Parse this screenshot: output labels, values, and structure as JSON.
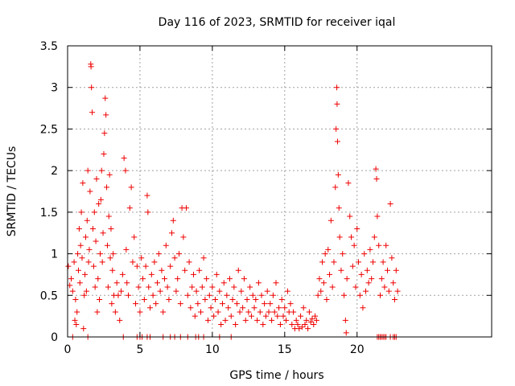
{
  "chart_data": {
    "type": "scatter",
    "title": "Day 116 of 2023, SRMTID for receiver iqal",
    "xlabel": "GPS time / hours",
    "ylabel": "SRMTID / TECUs",
    "xlim": [
      0,
      29.3
    ],
    "ylim": [
      0,
      3.5
    ],
    "x_ticks": [
      0,
      5,
      10,
      15,
      20
    ],
    "y_ticks": [
      0,
      0.5,
      1,
      1.5,
      2,
      2.5,
      3,
      3.5
    ],
    "x_tick_labels": [
      "0",
      "5",
      "10",
      "15",
      "20"
    ],
    "y_tick_labels": [
      "0",
      "0.5",
      "1",
      "1.5",
      "2",
      "2.5",
      "3",
      "3.5"
    ],
    "grid": true,
    "legend": "none",
    "marker": "+",
    "marker_color": "#ee0000",
    "series": [
      {
        "name": "SRMTID",
        "points": [
          [
            0.05,
            0.85
          ],
          [
            0.15,
            0.62
          ],
          [
            0.25,
            0.7
          ],
          [
            0.35,
            0.55
          ],
          [
            0.45,
            0.9
          ],
          [
            0.5,
            0.2
          ],
          [
            0.55,
            0.45
          ],
          [
            0.6,
            0.15
          ],
          [
            0.65,
            0.3
          ],
          [
            0.7,
            1.0
          ],
          [
            0.75,
            0.8
          ],
          [
            0.8,
            1.3
          ],
          [
            0.85,
            0.65
          ],
          [
            0.9,
            1.1
          ],
          [
            0.95,
            1.5
          ],
          [
            1.0,
            0.95
          ],
          [
            1.05,
            1.85
          ],
          [
            1.1,
            0.1
          ],
          [
            1.15,
            0.5
          ],
          [
            1.2,
            0.75
          ],
          [
            1.25,
            1.2
          ],
          [
            1.3,
            0.55
          ],
          [
            1.35,
            1.4
          ],
          [
            1.4,
            2.0
          ],
          [
            1.45,
            0.9
          ],
          [
            1.5,
            1.05
          ],
          [
            1.55,
            1.75
          ],
          [
            1.6,
            3.28
          ],
          [
            1.62,
            3.25
          ],
          [
            1.65,
            3.0
          ],
          [
            1.7,
            2.7
          ],
          [
            1.75,
            1.3
          ],
          [
            1.8,
            0.85
          ],
          [
            1.85,
            1.5
          ],
          [
            1.9,
            0.6
          ],
          [
            1.95,
            1.15
          ],
          [
            2.0,
            1.9
          ],
          [
            2.05,
            0.3
          ],
          [
            2.1,
            0.7
          ],
          [
            2.15,
            1.6
          ],
          [
            2.2,
            0.45
          ],
          [
            2.25,
            1.0
          ],
          [
            2.3,
            1.65
          ],
          [
            2.35,
            2.0
          ],
          [
            2.4,
            0.9
          ],
          [
            2.45,
            1.25
          ],
          [
            2.5,
            2.2
          ],
          [
            2.55,
            2.45
          ],
          [
            2.6,
            2.87
          ],
          [
            2.65,
            2.67
          ],
          [
            2.7,
            1.8
          ],
          [
            2.75,
            1.1
          ],
          [
            2.8,
            0.6
          ],
          [
            2.85,
            1.45
          ],
          [
            2.9,
            1.95
          ],
          [
            2.95,
            0.95
          ],
          [
            3.0,
            1.3
          ],
          [
            3.05,
            0.4
          ],
          [
            3.1,
            0.8
          ],
          [
            3.15,
            1.0
          ],
          [
            3.2,
            0.5
          ],
          [
            3.3,
            0.3
          ],
          [
            3.4,
            0.65
          ],
          [
            3.5,
            0.5
          ],
          [
            3.6,
            0.2
          ],
          [
            3.7,
            0.55
          ],
          [
            3.8,
            0.75
          ],
          [
            3.9,
            2.15
          ],
          [
            4.0,
            2.0
          ],
          [
            4.05,
            1.05
          ],
          [
            4.1,
            0.65
          ],
          [
            4.2,
            0.5
          ],
          [
            4.3,
            1.55
          ],
          [
            4.4,
            1.8
          ],
          [
            4.5,
            0.9
          ],
          [
            4.6,
            1.2
          ],
          [
            4.7,
            0.4
          ],
          [
            4.8,
            0.85
          ],
          [
            4.9,
            0.6
          ],
          [
            5.0,
            0.3
          ],
          [
            5.1,
            0.95
          ],
          [
            5.2,
            0.7
          ],
          [
            5.3,
            0.45
          ],
          [
            5.4,
            0.85
          ],
          [
            5.5,
            1.7
          ],
          [
            5.55,
            1.5
          ],
          [
            5.6,
            0.6
          ],
          [
            5.7,
            0.35
          ],
          [
            5.8,
            0.75
          ],
          [
            5.9,
            0.5
          ],
          [
            6.0,
            0.9
          ],
          [
            6.1,
            0.4
          ],
          [
            6.2,
            0.65
          ],
          [
            6.3,
            1.0
          ],
          [
            6.4,
            0.55
          ],
          [
            6.5,
            0.8
          ],
          [
            6.6,
            0.3
          ],
          [
            6.7,
            0.7
          ],
          [
            6.8,
            1.1
          ],
          [
            6.9,
            0.6
          ],
          [
            7.0,
            0.45
          ],
          [
            7.1,
            0.85
          ],
          [
            7.2,
            1.25
          ],
          [
            7.3,
            1.4
          ],
          [
            7.4,
            0.95
          ],
          [
            7.5,
            0.55
          ],
          [
            7.6,
            0.7
          ],
          [
            7.7,
            1.0
          ],
          [
            7.8,
            0.4
          ],
          [
            7.9,
            1.55
          ],
          [
            8.0,
            1.2
          ],
          [
            8.1,
            0.8
          ],
          [
            8.2,
            1.55
          ],
          [
            8.3,
            0.5
          ],
          [
            8.4,
            0.9
          ],
          [
            8.5,
            0.35
          ],
          [
            8.6,
            0.6
          ],
          [
            8.7,
            0.75
          ],
          [
            8.8,
            0.25
          ],
          [
            8.9,
            0.55
          ],
          [
            9.0,
            0.4
          ],
          [
            9.1,
            0.8
          ],
          [
            9.2,
            0.3
          ],
          [
            9.3,
            0.6
          ],
          [
            9.4,
            0.95
          ],
          [
            9.5,
            0.45
          ],
          [
            9.6,
            0.7
          ],
          [
            9.7,
            0.2
          ],
          [
            9.8,
            0.5
          ],
          [
            9.9,
            0.35
          ],
          [
            10.0,
            0.6
          ],
          [
            10.1,
            0.25
          ],
          [
            10.2,
            0.45
          ],
          [
            10.3,
            0.75
          ],
          [
            10.4,
            0.3
          ],
          [
            10.5,
            0.55
          ],
          [
            10.6,
            0.15
          ],
          [
            10.7,
            0.4
          ],
          [
            10.8,
            0.65
          ],
          [
            10.9,
            0.2
          ],
          [
            11.0,
            0.5
          ],
          [
            11.1,
            0.35
          ],
          [
            11.2,
            0.7
          ],
          [
            11.3,
            0.25
          ],
          [
            11.4,
            0.45
          ],
          [
            11.5,
            0.6
          ],
          [
            11.6,
            0.15
          ],
          [
            11.7,
            0.4
          ],
          [
            11.8,
            0.8
          ],
          [
            11.9,
            0.3
          ],
          [
            12.0,
            0.55
          ],
          [
            12.1,
            0.35
          ],
          [
            12.2,
            0.7
          ],
          [
            12.3,
            0.2
          ],
          [
            12.4,
            0.45
          ],
          [
            12.5,
            0.3
          ],
          [
            12.6,
            0.6
          ],
          [
            12.7,
            0.25
          ],
          [
            12.8,
            0.5
          ],
          [
            12.9,
            0.35
          ],
          [
            13.0,
            0.45
          ],
          [
            13.1,
            0.2
          ],
          [
            13.2,
            0.65
          ],
          [
            13.3,
            0.3
          ],
          [
            13.4,
            0.5
          ],
          [
            13.5,
            0.15
          ],
          [
            13.6,
            0.4
          ],
          [
            13.7,
            0.25
          ],
          [
            13.8,
            0.55
          ],
          [
            13.9,
            0.3
          ],
          [
            14.0,
            0.4
          ],
          [
            14.1,
            0.2
          ],
          [
            14.2,
            0.5
          ],
          [
            14.3,
            0.3
          ],
          [
            14.4,
            0.65
          ],
          [
            14.5,
            0.25
          ],
          [
            14.6,
            0.35
          ],
          [
            14.7,
            0.15
          ],
          [
            14.8,
            0.45
          ],
          [
            14.9,
            0.25
          ],
          [
            15.0,
            0.35
          ],
          [
            15.1,
            0.2
          ],
          [
            15.2,
            0.55
          ],
          [
            15.3,
            0.3
          ],
          [
            15.4,
            0.4
          ],
          [
            15.5,
            0.15
          ],
          [
            15.6,
            0.3
          ],
          [
            15.7,
            0.1
          ],
          [
            15.8,
            0.2
          ],
          [
            15.9,
            0.15
          ],
          [
            16.0,
            0.1
          ],
          [
            16.1,
            0.25
          ],
          [
            16.2,
            0.12
          ],
          [
            16.3,
            0.35
          ],
          [
            16.4,
            0.15
          ],
          [
            16.5,
            0.2
          ],
          [
            16.6,
            0.1
          ],
          [
            16.7,
            0.3
          ],
          [
            16.8,
            0.18
          ],
          [
            16.9,
            0.22
          ],
          [
            17.0,
            0.15
          ],
          [
            17.1,
            0.25
          ],
          [
            17.2,
            0.2
          ],
          [
            17.3,
            0.5
          ],
          [
            17.4,
            0.7
          ],
          [
            17.5,
            0.55
          ],
          [
            17.6,
            0.9
          ],
          [
            17.7,
            0.65
          ],
          [
            17.8,
            1.0
          ],
          [
            17.9,
            0.45
          ],
          [
            18.0,
            1.05
          ],
          [
            18.1,
            0.75
          ],
          [
            18.2,
            1.4
          ],
          [
            18.3,
            0.6
          ],
          [
            18.4,
            0.9
          ],
          [
            18.5,
            1.8
          ],
          [
            18.55,
            2.5
          ],
          [
            18.6,
            3.0
          ],
          [
            18.62,
            2.8
          ],
          [
            18.65,
            2.35
          ],
          [
            18.7,
            1.95
          ],
          [
            18.75,
            1.55
          ],
          [
            18.8,
            1.2
          ],
          [
            18.9,
            0.8
          ],
          [
            19.0,
            1.0
          ],
          [
            19.1,
            0.5
          ],
          [
            19.2,
            0.2
          ],
          [
            19.25,
            0.05
          ],
          [
            19.3,
            0.7
          ],
          [
            19.4,
            1.85
          ],
          [
            19.5,
            1.45
          ],
          [
            19.6,
            1.2
          ],
          [
            19.7,
            0.85
          ],
          [
            19.8,
            1.1
          ],
          [
            19.9,
            0.6
          ],
          [
            20.0,
            1.3
          ],
          [
            20.1,
            0.9
          ],
          [
            20.2,
            0.5
          ],
          [
            20.3,
            0.75
          ],
          [
            20.4,
            0.35
          ],
          [
            20.5,
            1.0
          ],
          [
            20.6,
            0.55
          ],
          [
            20.7,
            0.8
          ],
          [
            20.8,
            0.65
          ],
          [
            20.9,
            1.05
          ],
          [
            21.0,
            0.7
          ],
          [
            21.1,
            0.9
          ],
          [
            21.2,
            1.2
          ],
          [
            21.3,
            2.02
          ],
          [
            21.35,
            1.9
          ],
          [
            21.4,
            1.45
          ],
          [
            21.5,
            1.1
          ],
          [
            21.6,
            0.5
          ],
          [
            21.7,
            0.7
          ],
          [
            21.8,
            0.9
          ],
          [
            21.9,
            0.6
          ],
          [
            22.0,
            1.1
          ],
          [
            22.1,
            0.8
          ],
          [
            22.2,
            0.55
          ],
          [
            22.3,
            1.6
          ],
          [
            22.4,
            0.95
          ],
          [
            22.5,
            0.65
          ],
          [
            22.6,
            0.45
          ],
          [
            22.7,
            0.8
          ],
          [
            22.8,
            0.55
          ],
          [
            0.35,
            0.0
          ],
          [
            1.4,
            0.0
          ],
          [
            3.85,
            0.0
          ],
          [
            4.8,
            0.0
          ],
          [
            5.0,
            0.0
          ],
          [
            5.15,
            0.0
          ],
          [
            5.5,
            0.0
          ],
          [
            5.7,
            0.0
          ],
          [
            6.6,
            0.0
          ],
          [
            7.1,
            0.0
          ],
          [
            7.4,
            0.0
          ],
          [
            7.8,
            0.0
          ],
          [
            8.3,
            0.0
          ],
          [
            8.85,
            0.0
          ],
          [
            9.05,
            0.0
          ],
          [
            9.4,
            0.0
          ],
          [
            10.5,
            0.0
          ],
          [
            11.3,
            0.0
          ],
          [
            21.4,
            0.0
          ],
          [
            21.5,
            0.0
          ],
          [
            21.6,
            0.0
          ],
          [
            21.7,
            0.0
          ],
          [
            21.8,
            0.0
          ],
          [
            21.9,
            0.0
          ],
          [
            22.0,
            0.0
          ],
          [
            22.3,
            0.0
          ],
          [
            22.5,
            0.0
          ],
          [
            22.6,
            0.0
          ],
          [
            22.7,
            0.0
          ]
        ]
      }
    ]
  }
}
